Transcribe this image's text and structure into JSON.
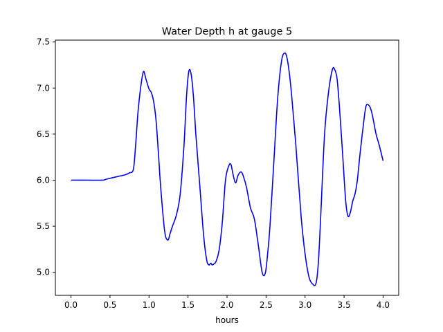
{
  "chart_data": {
    "type": "line",
    "title": "Water Depth h at gauge 5",
    "xlabel": "hours",
    "ylabel": "",
    "xlim": [
      -0.2,
      4.2
    ],
    "ylim": [
      4.75,
      7.52
    ],
    "xticks": [
      0.0,
      0.5,
      1.0,
      1.5,
      2.0,
      2.5,
      3.0,
      3.5,
      4.0
    ],
    "xtick_labels": [
      "0.0",
      "0.5",
      "1.0",
      "1.5",
      "2.0",
      "2.5",
      "3.0",
      "3.5",
      "4.0"
    ],
    "yticks": [
      5.0,
      5.5,
      6.0,
      6.5,
      7.0,
      7.5
    ],
    "ytick_labels": [
      "5.0",
      "5.5",
      "6.0",
      "6.5",
      "7.0",
      "7.5"
    ],
    "grid": false,
    "colors": {
      "line": "#0000ff",
      "axes": "#000000",
      "background": "#ffffff"
    },
    "series": [
      {
        "x": [
          0.0,
          0.2,
          0.4,
          0.45,
          0.5,
          0.6,
          0.7,
          0.75,
          0.8,
          0.83,
          0.86,
          0.9,
          0.93,
          0.96,
          1.0,
          1.03,
          1.06,
          1.09,
          1.12,
          1.15,
          1.2,
          1.24,
          1.27,
          1.3,
          1.35,
          1.4,
          1.45,
          1.48,
          1.51,
          1.54,
          1.57,
          1.6,
          1.65,
          1.7,
          1.74,
          1.77,
          1.79,
          1.81,
          1.83,
          1.86,
          1.9,
          1.94,
          1.98,
          2.02,
          2.05,
          2.08,
          2.11,
          2.14,
          2.18,
          2.21,
          2.25,
          2.3,
          2.35,
          2.4,
          2.45,
          2.49,
          2.52,
          2.55,
          2.6,
          2.65,
          2.7,
          2.74,
          2.77,
          2.8,
          2.83,
          2.88,
          2.95,
          3.0,
          3.05,
          3.1,
          3.14,
          3.17,
          3.2,
          3.25,
          3.3,
          3.35,
          3.38,
          3.41,
          3.44,
          3.48,
          3.52,
          3.55,
          3.58,
          3.61,
          3.64,
          3.67,
          3.7,
          3.74,
          3.78,
          3.82,
          3.85,
          3.88,
          3.91,
          3.95,
          4.0
        ],
        "y": [
          6.0,
          6.0,
          6.0,
          6.01,
          6.02,
          6.04,
          6.06,
          6.08,
          6.12,
          6.4,
          6.75,
          7.05,
          7.18,
          7.1,
          6.99,
          6.95,
          6.85,
          6.65,
          6.3,
          5.92,
          5.45,
          5.35,
          5.42,
          5.5,
          5.62,
          5.85,
          6.4,
          6.9,
          7.18,
          7.15,
          6.9,
          6.5,
          5.95,
          5.4,
          5.13,
          5.08,
          5.1,
          5.08,
          5.09,
          5.12,
          5.25,
          5.55,
          6.0,
          6.15,
          6.17,
          6.05,
          5.97,
          6.05,
          6.09,
          6.04,
          5.92,
          5.7,
          5.58,
          5.3,
          5.0,
          4.99,
          5.2,
          5.5,
          6.2,
          6.9,
          7.3,
          7.38,
          7.32,
          7.15,
          6.9,
          6.4,
          5.6,
          5.2,
          4.95,
          4.87,
          4.88,
          5.1,
          5.6,
          6.5,
          6.95,
          7.2,
          7.2,
          7.1,
          6.8,
          6.3,
          5.78,
          5.61,
          5.65,
          5.77,
          5.85,
          6.0,
          6.25,
          6.55,
          6.8,
          6.81,
          6.75,
          6.63,
          6.5,
          6.38,
          6.21
        ]
      }
    ]
  }
}
